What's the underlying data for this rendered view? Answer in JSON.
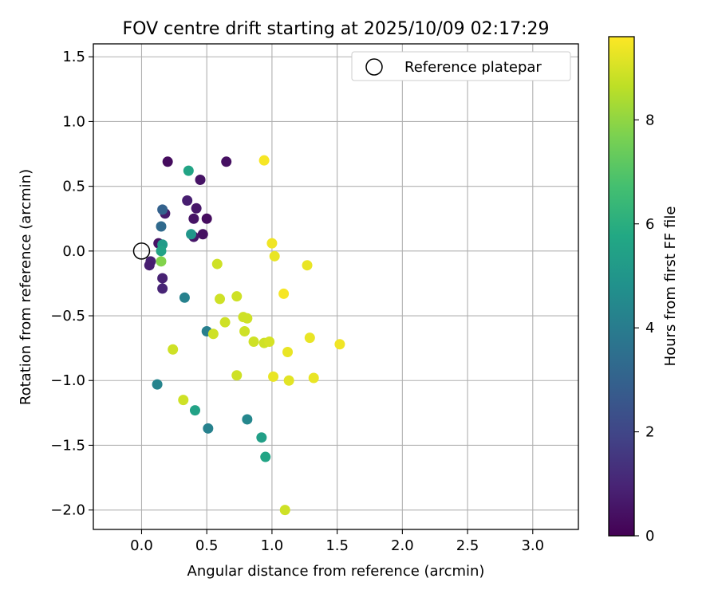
{
  "chart_data": {
    "type": "scatter",
    "title": "FOV centre drift starting at 2025/10/09 02:17:29",
    "xlabel": "Angular distance from reference (arcmin)",
    "ylabel": "Rotation from reference (arcmin)",
    "xlim": [
      -0.37,
      3.35
    ],
    "ylim": [
      -2.15,
      1.6
    ],
    "grid": true,
    "xticks": [
      0.0,
      0.5,
      1.0,
      1.5,
      2.0,
      2.5,
      3.0
    ],
    "xtick_labels": [
      "0.0",
      "0.5",
      "1.0",
      "1.5",
      "2.0",
      "2.5",
      "3.0"
    ],
    "yticks": [
      -2.0,
      -1.5,
      -1.0,
      -0.5,
      0.0,
      0.5,
      1.0,
      1.5
    ],
    "ytick_labels": [
      "−2.0",
      "−1.5",
      "−1.0",
      "−0.5",
      "0.0",
      "0.5",
      "1.0",
      "1.5"
    ],
    "legend": {
      "label": "Reference platepar",
      "position": "upper right"
    },
    "reference_point": {
      "x": 0.0,
      "y": 0.0
    },
    "colorbar": {
      "label": "Hours from first FF file",
      "colormap": "viridis",
      "range": [
        0,
        9.6
      ],
      "ticks": [
        0,
        2,
        4,
        6,
        8
      ],
      "tick_labels": [
        "0",
        "2",
        "4",
        "6",
        "8"
      ]
    },
    "points": [
      {
        "x": 0.2,
        "y": 0.69,
        "h": 0.3
      },
      {
        "x": 0.65,
        "y": 0.69,
        "h": 0.4
      },
      {
        "x": 0.45,
        "y": 0.55,
        "h": 0.5
      },
      {
        "x": 0.35,
        "y": 0.39,
        "h": 0.8
      },
      {
        "x": 0.42,
        "y": 0.33,
        "h": 0.6
      },
      {
        "x": 0.18,
        "y": 0.29,
        "h": 0.7
      },
      {
        "x": 0.4,
        "y": 0.25,
        "h": 0.5
      },
      {
        "x": 0.5,
        "y": 0.25,
        "h": 0.3
      },
      {
        "x": 0.47,
        "y": 0.13,
        "h": 0.4
      },
      {
        "x": 0.4,
        "y": 0.11,
        "h": 0.6
      },
      {
        "x": 0.13,
        "y": 0.06,
        "h": 0.5
      },
      {
        "x": 0.07,
        "y": -0.08,
        "h": 0.9
      },
      {
        "x": 0.06,
        "y": -0.11,
        "h": 0.8
      },
      {
        "x": 0.16,
        "y": -0.21,
        "h": 0.9
      },
      {
        "x": 0.16,
        "y": -0.29,
        "h": 1.0
      },
      {
        "x": 0.16,
        "y": 0.32,
        "h": 3.0
      },
      {
        "x": 0.15,
        "y": 0.19,
        "h": 3.3
      },
      {
        "x": 0.36,
        "y": 0.62,
        "h": 5.6
      },
      {
        "x": 0.38,
        "y": 0.13,
        "h": 5.0
      },
      {
        "x": 0.16,
        "y": 0.05,
        "h": 5.2
      },
      {
        "x": 0.15,
        "y": 0.0,
        "h": 5.5
      },
      {
        "x": 0.15,
        "y": -0.08,
        "h": 7.8
      },
      {
        "x": 0.33,
        "y": -0.36,
        "h": 4.2
      },
      {
        "x": 0.5,
        "y": -0.62,
        "h": 4.1
      },
      {
        "x": 0.12,
        "y": -1.03,
        "h": 4.3
      },
      {
        "x": 0.41,
        "y": -1.23,
        "h": 5.5
      },
      {
        "x": 0.51,
        "y": -1.37,
        "h": 4.2
      },
      {
        "x": 0.81,
        "y": -1.3,
        "h": 4.4
      },
      {
        "x": 0.92,
        "y": -1.44,
        "h": 5.4
      },
      {
        "x": 0.95,
        "y": -1.59,
        "h": 5.6
      },
      {
        "x": 0.58,
        "y": -0.1,
        "h": 8.9
      },
      {
        "x": 0.6,
        "y": -0.37,
        "h": 8.9
      },
      {
        "x": 0.73,
        "y": -0.35,
        "h": 8.9
      },
      {
        "x": 0.64,
        "y": -0.55,
        "h": 8.9
      },
      {
        "x": 0.55,
        "y": -0.64,
        "h": 8.9
      },
      {
        "x": 0.24,
        "y": -0.76,
        "h": 8.9
      },
      {
        "x": 0.32,
        "y": -1.15,
        "h": 8.9
      },
      {
        "x": 0.73,
        "y": -0.96,
        "h": 8.9
      },
      {
        "x": 0.78,
        "y": -0.51,
        "h": 8.9
      },
      {
        "x": 0.81,
        "y": -0.52,
        "h": 8.9
      },
      {
        "x": 0.79,
        "y": -0.62,
        "h": 8.9
      },
      {
        "x": 0.86,
        "y": -0.7,
        "h": 8.9
      },
      {
        "x": 0.94,
        "y": -0.71,
        "h": 8.9
      },
      {
        "x": 0.98,
        "y": -0.7,
        "h": 9.0
      },
      {
        "x": 1.1,
        "y": -2.0,
        "h": 8.9
      },
      {
        "x": 0.94,
        "y": 0.7,
        "h": 9.5
      },
      {
        "x": 1.0,
        "y": 0.06,
        "h": 9.4
      },
      {
        "x": 1.02,
        "y": -0.04,
        "h": 9.3
      },
      {
        "x": 1.27,
        "y": -0.11,
        "h": 9.3
      },
      {
        "x": 1.09,
        "y": -0.33,
        "h": 9.5
      },
      {
        "x": 1.29,
        "y": -0.67,
        "h": 9.3
      },
      {
        "x": 1.52,
        "y": -0.72,
        "h": 9.4
      },
      {
        "x": 1.12,
        "y": -0.78,
        "h": 9.3
      },
      {
        "x": 1.01,
        "y": -0.97,
        "h": 9.3
      },
      {
        "x": 1.13,
        "y": -1.0,
        "h": 9.2
      },
      {
        "x": 1.32,
        "y": -0.98,
        "h": 9.3
      }
    ]
  }
}
